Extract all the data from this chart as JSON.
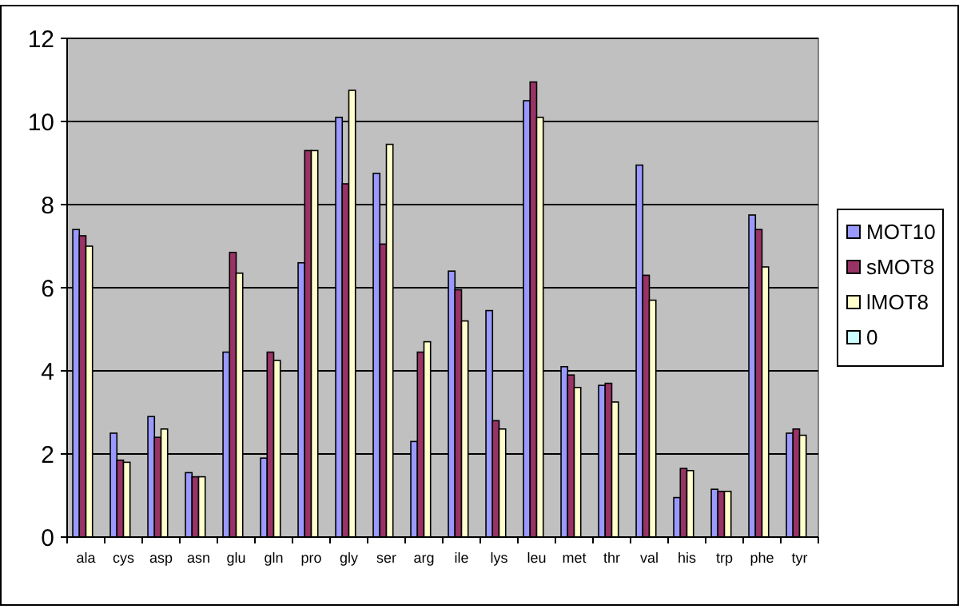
{
  "chart_data": {
    "type": "bar",
    "categories": [
      "ala",
      "cys",
      "asp",
      "asn",
      "glu",
      "gln",
      "pro",
      "gly",
      "ser",
      "arg",
      "ile",
      "lys",
      "leu",
      "met",
      "thr",
      "val",
      "his",
      "trp",
      "phe",
      "tyr"
    ],
    "series": [
      {
        "name": "MOT10",
        "color": "#9999ff",
        "values": [
          7.4,
          2.5,
          2.9,
          1.55,
          4.45,
          1.9,
          6.6,
          10.1,
          8.75,
          2.3,
          6.4,
          5.45,
          10.5,
          4.1,
          3.65,
          8.95,
          0.95,
          1.15,
          7.75,
          2.5
        ]
      },
      {
        "name": "sMOT8",
        "color": "#993366",
        "values": [
          7.25,
          1.85,
          2.4,
          1.45,
          6.85,
          4.45,
          9.3,
          8.5,
          7.05,
          4.45,
          5.95,
          2.8,
          10.95,
          3.9,
          3.7,
          6.3,
          1.65,
          1.1,
          7.4,
          2.6
        ]
      },
      {
        "name": "lMOT8",
        "color": "#ffffcc",
        "values": [
          7.0,
          1.8,
          2.6,
          1.45,
          6.35,
          4.25,
          9.3,
          10.75,
          9.45,
          4.7,
          5.2,
          2.6,
          10.1,
          3.6,
          3.25,
          5.7,
          1.6,
          1.1,
          6.5,
          2.45
        ]
      },
      {
        "name": "0",
        "color": "#ccffff",
        "values": [
          0,
          0,
          0,
          0,
          0,
          0,
          0,
          0,
          0,
          0,
          0,
          0,
          0,
          0,
          0,
          0,
          0,
          0,
          0,
          0
        ]
      }
    ],
    "ylim": [
      0,
      12
    ],
    "yticks": [
      0,
      2,
      4,
      6,
      8,
      10,
      12
    ],
    "grid": "y",
    "legend": "right"
  }
}
